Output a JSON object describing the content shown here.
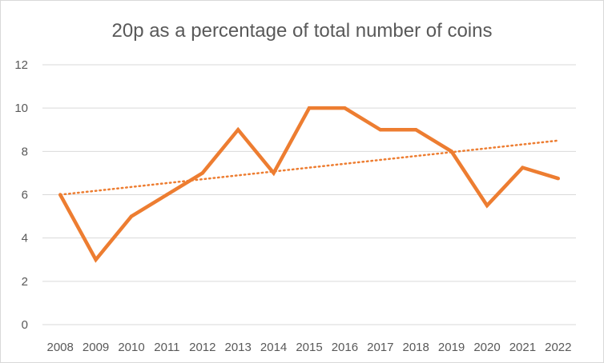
{
  "chart_data": {
    "type": "line",
    "title": "20p as a percentage of total number of coins",
    "xlabel": "",
    "ylabel": "",
    "categories": [
      "2008",
      "2009",
      "2010",
      "2011",
      "2012",
      "2013",
      "2014",
      "2015",
      "2016",
      "2017",
      "2018",
      "2019",
      "2020",
      "2021",
      "2022"
    ],
    "series": [
      {
        "values": [
          6,
          3,
          5,
          6,
          7,
          9,
          7,
          10,
          10,
          9,
          9,
          8,
          5.5,
          7.25,
          6.75
        ],
        "color": "#ED7D31"
      }
    ],
    "trendline": {
      "type": "linear",
      "start": 6,
      "end": 8.5,
      "color": "#ED7D31",
      "style": "dotted"
    },
    "ylim": [
      0,
      12
    ],
    "yticks": [
      0,
      2,
      4,
      6,
      8,
      10,
      12
    ],
    "grid": true,
    "legend": "none"
  }
}
